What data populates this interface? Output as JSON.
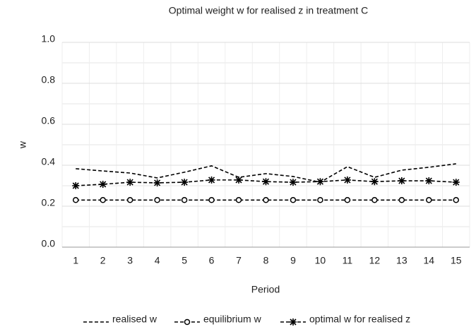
{
  "chart_data": {
    "type": "line",
    "title": "Optimal weight w for realised z in treatment C",
    "x_label": "Period",
    "y_label": "w",
    "categories": [
      1,
      2,
      3,
      4,
      5,
      6,
      7,
      8,
      9,
      10,
      11,
      12,
      13,
      14,
      15
    ],
    "series": [
      {
        "name": "realised w",
        "color": "#000000",
        "marker": "none",
        "values": [
          0.383,
          0.372,
          0.362,
          0.338,
          0.366,
          0.397,
          0.341,
          0.359,
          0.345,
          0.317,
          0.393,
          0.341,
          0.376,
          0.39,
          0.407
        ]
      },
      {
        "name": "equilibrium w",
        "color": "#000000",
        "marker": "circle",
        "values": [
          0.23,
          0.23,
          0.23,
          0.23,
          0.23,
          0.23,
          0.23,
          0.23,
          0.23,
          0.23,
          0.23,
          0.23,
          0.23,
          0.23,
          0.23
        ]
      },
      {
        "name": "optimal w for realised z",
        "color": "#000000",
        "marker": "star",
        "values": [
          0.3,
          0.307,
          0.317,
          0.314,
          0.317,
          0.328,
          0.328,
          0.32,
          0.317,
          0.32,
          0.328,
          0.32,
          0.324,
          0.324,
          0.317
        ]
      }
    ],
    "ylim": [
      0,
      1
    ],
    "yticks": [
      {
        "value": 0,
        "label": "0.0"
      },
      {
        "value": 0.2,
        "label": "0.2"
      },
      {
        "value": 0.4,
        "label": "0.4"
      },
      {
        "value": 0.6,
        "label": "0.6"
      },
      {
        "value": 0.8,
        "label": "0.8"
      },
      {
        "value": 1,
        "label": "1.0"
      }
    ],
    "y_minor_ticks": [
      0.1,
      0.3,
      0.5,
      0.7,
      0.9
    ],
    "grid": true,
    "legend": "bottom"
  }
}
